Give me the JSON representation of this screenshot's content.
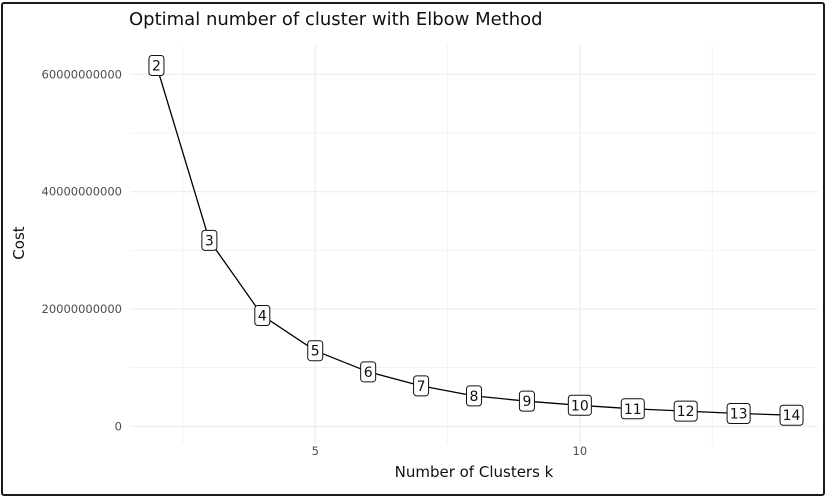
{
  "chart_data": {
    "type": "line",
    "title": "Optimal number of cluster with Elbow Method",
    "xlabel": "Number of Clusters k",
    "ylabel": "Cost",
    "x": [
      2,
      3,
      4,
      5,
      6,
      7,
      8,
      9,
      10,
      11,
      12,
      13,
      14
    ],
    "y": [
      61500000000,
      31700000000,
      18900000000,
      12900000000,
      9300000000,
      6900000000,
      5200000000,
      4300000000,
      3600000000,
      3000000000,
      2600000000,
      2200000000,
      1900000000
    ],
    "point_labels": [
      "2",
      "3",
      "4",
      "5",
      "6",
      "7",
      "8",
      "9",
      "10",
      "11",
      "12",
      "13",
      "14"
    ],
    "xlim": [
      1.5,
      14.5
    ],
    "ylim": [
      -3000000000,
      65000000000
    ],
    "xticks": [
      5,
      10
    ],
    "xtick_labels": [
      "5",
      "10"
    ],
    "yticks": [
      0,
      20000000000,
      40000000000,
      60000000000
    ],
    "ytick_labels": [
      "0",
      "20000000000",
      "40000000000",
      "60000000000"
    ],
    "grid": true,
    "legend": "none",
    "line_color": "#000000",
    "grid_color": "#ebebeb"
  }
}
